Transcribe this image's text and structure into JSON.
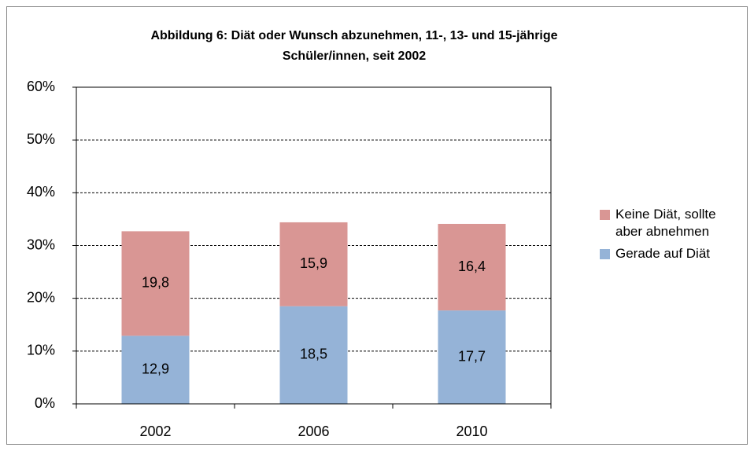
{
  "chart_data": {
    "type": "stacked_bar",
    "title": [
      "Abbildung 6: Diät oder Wunsch abzunehmen, 11-, 13- und 15-jährige",
      "Schüler/innen, seit 2002"
    ],
    "categories": [
      "2002",
      "2006",
      "2010"
    ],
    "series": [
      {
        "name": "Gerade auf Diät",
        "color": "#95b3d7",
        "values": [
          12.9,
          18.5,
          17.7
        ],
        "value_labels": [
          "12,9",
          "18,5",
          "17,7"
        ]
      },
      {
        "name": "Keine Diät, sollte aber abnehmen",
        "color": "#d99694",
        "values": [
          19.8,
          15.9,
          16.4
        ],
        "value_labels": [
          "19,8",
          "15,9",
          "16,4"
        ]
      }
    ],
    "ylim": [
      0,
      60
    ],
    "yticks": [
      {
        "value": 0,
        "label": "0%"
      },
      {
        "value": 10,
        "label": "10%"
      },
      {
        "value": 20,
        "label": "20%"
      },
      {
        "value": 30,
        "label": "30%"
      },
      {
        "value": 40,
        "label": "40%"
      },
      {
        "value": 50,
        "label": "50%"
      },
      {
        "value": 60,
        "label": "60%"
      }
    ],
    "grid": true,
    "legend": "right"
  }
}
